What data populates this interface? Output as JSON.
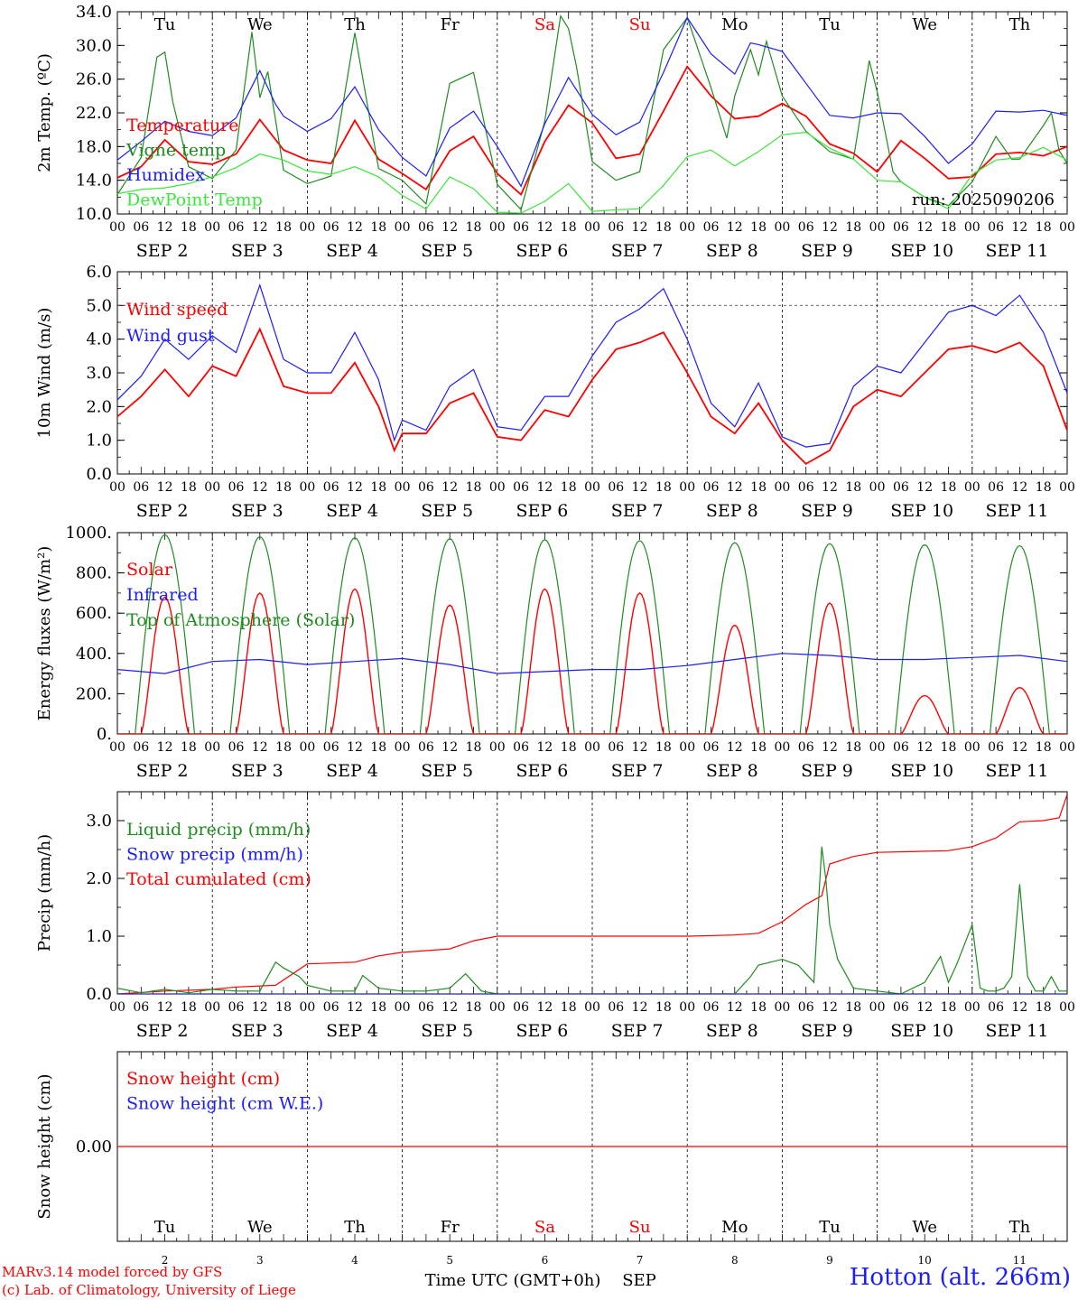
{
  "run_label": "run: 2025090206",
  "weekdays": [
    "Tu",
    "We",
    "Th",
    "Fr",
    "Sa",
    "Su",
    "Mo",
    "Tu",
    "We",
    "Th"
  ],
  "weekend_color": "#ff0000",
  "day_labels": [
    "SEP  2",
    "SEP  3",
    "SEP  4",
    "SEP  5",
    "SEP  6",
    "SEP  7",
    "SEP  8",
    "SEP  9",
    "SEP 10",
    "SEP 11"
  ],
  "bottom_day_numbers": [
    "2",
    "3",
    "4",
    "5",
    "6",
    "7",
    "8",
    "9",
    "10",
    "11"
  ],
  "hour_ticks": [
    "00",
    "06",
    "12",
    "18"
  ],
  "hour_tick_last": "00",
  "bottom_axis_label": "Time UTC (GMT+0h)",
  "bottom_axis_month": "SEP",
  "credit_line_1": "MARv3.14 model forced by GFS",
  "credit_line_2": "(c) Lab. of Climatology, University of Liege",
  "station": "Hotton (alt. 266m)",
  "chart_data": [
    {
      "type": "line",
      "ylabel": "2m Temp. (ºC)",
      "ylim": [
        10,
        34
      ],
      "yticks": [
        "10.0",
        "14.0",
        "18.0",
        "22.0",
        "26.0",
        "30.0",
        "34.0"
      ],
      "ytick_values": [
        10,
        14,
        18,
        22,
        26,
        30,
        34
      ],
      "x_unit": "hours since SEP 2 00 UTC",
      "legend": [
        {
          "text": "Temperature",
          "color": "#ff0000"
        },
        {
          "text": "Vigne temp",
          "color": "#1e8c1e"
        },
        {
          "text": "Humidex",
          "color": "#1c1cff"
        },
        {
          "text": "DewPoint Temp",
          "color": "#3ce63c"
        }
      ],
      "series": [
        {
          "name": "Temperature",
          "color": "#ff0000",
          "x": [
            0,
            6,
            12,
            18,
            24,
            30,
            36,
            42,
            48,
            54,
            60,
            66,
            72,
            78,
            84,
            90,
            96,
            102,
            108,
            114,
            120,
            126,
            132,
            138,
            144,
            150,
            156,
            162,
            168,
            174,
            180,
            186,
            192,
            198,
            204,
            210,
            216,
            222,
            228,
            234,
            240
          ],
          "y": [
            14.3,
            15.6,
            18.8,
            16.2,
            15.9,
            17.1,
            21.2,
            17.6,
            16.4,
            16.0,
            21.1,
            16.5,
            14.8,
            12.9,
            17.5,
            19.2,
            14.8,
            12.3,
            18.6,
            22.9,
            20.8,
            16.6,
            17.1,
            22.2,
            27.5,
            24.0,
            21.3,
            21.6,
            23.1,
            21.6,
            18.3,
            17.2,
            15.0,
            18.7,
            16.6,
            14.2,
            14.4,
            17.1,
            17.3,
            16.9,
            18.0
          ]
        },
        {
          "name": "Vigne temp",
          "color": "#1e8c1e",
          "x": [
            0,
            6,
            10,
            12,
            14,
            18,
            24,
            30,
            34,
            36,
            38,
            42,
            48,
            54,
            60,
            66,
            72,
            78,
            84,
            90,
            96,
            102,
            108,
            112,
            114,
            116,
            120,
            126,
            132,
            138,
            144,
            150,
            154,
            156,
            160,
            162,
            164,
            168,
            174,
            180,
            186,
            190,
            192,
            196,
            198,
            204,
            210,
            216,
            222,
            226,
            228,
            234,
            236,
            238,
            240
          ],
          "y": [
            12.3,
            16.7,
            28.6,
            29.2,
            23.3,
            15.6,
            14.2,
            17.6,
            31.6,
            23.8,
            26.9,
            15.2,
            13.6,
            14.5,
            31.5,
            15.4,
            14.0,
            11.2,
            25.5,
            26.8,
            13.5,
            10.5,
            21.0,
            33.5,
            32.0,
            27.5,
            16.2,
            14.0,
            15.0,
            29.5,
            33.3,
            25.0,
            19.0,
            24.0,
            29.5,
            26.5,
            30.5,
            24.0,
            19.8,
            17.4,
            16.5,
            28.2,
            24.5,
            15.0,
            13.8,
            12.0,
            11.0,
            13.8,
            19.2,
            16.5,
            16.5,
            20.5,
            22.0,
            17.5,
            16.0
          ]
        },
        {
          "name": "Humidex",
          "color": "#1c1cff",
          "x": [
            0,
            6,
            12,
            18,
            24,
            30,
            36,
            40,
            42,
            48,
            54,
            60,
            66,
            72,
            78,
            84,
            90,
            96,
            102,
            108,
            114,
            120,
            126,
            132,
            138,
            144,
            150,
            156,
            160,
            162,
            168,
            174,
            180,
            186,
            192,
            198,
            204,
            210,
            216,
            222,
            228,
            234,
            240
          ],
          "y": [
            16.4,
            18.6,
            21.0,
            19.8,
            19.3,
            21.4,
            27.0,
            23.0,
            21.6,
            19.8,
            21.3,
            25.1,
            20.0,
            16.7,
            14.5,
            20.2,
            22.2,
            18.0,
            13.3,
            20.7,
            26.2,
            21.8,
            19.4,
            20.9,
            26.8,
            33.3,
            29.0,
            26.6,
            30.3,
            30.1,
            29.3,
            25.5,
            21.7,
            21.4,
            22.0,
            21.9,
            19.2,
            16.0,
            18.3,
            22.2,
            22.1,
            22.3,
            21.7
          ]
        },
        {
          "name": "DewPoint Temp",
          "color": "#3ce63c",
          "x": [
            0,
            6,
            12,
            18,
            24,
            30,
            36,
            42,
            48,
            54,
            60,
            66,
            72,
            78,
            84,
            90,
            96,
            102,
            108,
            114,
            120,
            126,
            132,
            138,
            144,
            150,
            156,
            162,
            168,
            174,
            180,
            186,
            192,
            198,
            204,
            210,
            216,
            222,
            228,
            234,
            240
          ],
          "y": [
            12.4,
            12.9,
            13.1,
            13.6,
            14.4,
            15.5,
            17.1,
            16.4,
            15.1,
            14.7,
            15.6,
            14.4,
            12.2,
            10.6,
            14.4,
            13.0,
            10.2,
            10.1,
            11.5,
            13.6,
            10.3,
            10.5,
            10.6,
            13.4,
            16.8,
            17.6,
            15.7,
            17.4,
            19.4,
            19.7,
            17.8,
            16.5,
            14.0,
            13.8,
            12.0,
            10.6,
            14.7,
            16.4,
            16.7,
            17.9,
            16.4
          ]
        }
      ]
    },
    {
      "type": "line",
      "ylabel": "10m Wind (m/s)",
      "ylim": [
        0,
        6
      ],
      "yticks": [
        "0.0",
        "1.0",
        "2.0",
        "3.0",
        "4.0",
        "5.0",
        "6.0"
      ],
      "ytick_values": [
        0,
        1,
        2,
        3,
        4,
        5,
        6
      ],
      "reference_line": 5.0,
      "legend": [
        {
          "text": "Wind speed",
          "color": "#ff0000"
        },
        {
          "text": "Wind gust",
          "color": "#1c1cff"
        }
      ],
      "series": [
        {
          "name": "Wind speed",
          "color": "#ff0000",
          "x": [
            0,
            6,
            12,
            18,
            24,
            30,
            36,
            42,
            48,
            54,
            60,
            66,
            70,
            72,
            78,
            84,
            90,
            96,
            102,
            108,
            114,
            120,
            126,
            132,
            138,
            144,
            150,
            156,
            162,
            168,
            174,
            180,
            186,
            192,
            198,
            204,
            210,
            216,
            222,
            228,
            234,
            240
          ],
          "y": [
            1.7,
            2.3,
            3.1,
            2.3,
            3.2,
            2.9,
            4.3,
            2.6,
            2.4,
            2.4,
            3.3,
            2.0,
            0.7,
            1.2,
            1.2,
            2.1,
            2.4,
            1.1,
            1.0,
            1.9,
            1.7,
            2.8,
            3.7,
            3.9,
            4.2,
            3.0,
            1.7,
            1.2,
            2.1,
            1.0,
            0.3,
            0.7,
            2.0,
            2.5,
            2.3,
            3.0,
            3.7,
            3.8,
            3.6,
            3.9,
            3.2,
            1.3
          ]
        },
        {
          "name": "Wind gust",
          "color": "#1c1cff",
          "x": [
            0,
            6,
            12,
            18,
            24,
            30,
            36,
            42,
            48,
            54,
            60,
            66,
            70,
            72,
            78,
            84,
            90,
            96,
            102,
            108,
            114,
            120,
            126,
            132,
            138,
            144,
            150,
            156,
            162,
            168,
            174,
            180,
            186,
            192,
            198,
            204,
            210,
            216,
            222,
            228,
            234,
            240
          ],
          "y": [
            2.2,
            2.9,
            4.0,
            3.4,
            4.1,
            3.6,
            5.6,
            3.4,
            3.0,
            3.0,
            4.2,
            2.8,
            1.0,
            1.6,
            1.3,
            2.6,
            3.1,
            1.4,
            1.3,
            2.3,
            2.3,
            3.5,
            4.5,
            4.9,
            5.5,
            4.0,
            2.1,
            1.4,
            2.7,
            1.1,
            0.8,
            0.9,
            2.6,
            3.2,
            3.0,
            3.9,
            4.8,
            5.0,
            4.7,
            5.3,
            4.2,
            2.4
          ]
        }
      ]
    },
    {
      "type": "line",
      "ylabel": "Energy fluxes (W/m²)",
      "ylim": [
        0,
        1000
      ],
      "yticks": [
        "0.",
        "200.",
        "400.",
        "600.",
        "800.",
        "1000."
      ],
      "ytick_values": [
        0,
        200,
        400,
        600,
        800,
        1000
      ],
      "legend": [
        {
          "text": "Solar",
          "color": "#ff0000"
        },
        {
          "text": "Infrared",
          "color": "#1c1cff"
        },
        {
          "text": "Top of Atmosphere (Solar)",
          "color": "#1e8c1e"
        }
      ],
      "toa_peaks": [
        990,
        980,
        975,
        970,
        965,
        960,
        950,
        945,
        940,
        935
      ],
      "solar_peaks": [
        680,
        700,
        720,
        640,
        720,
        700,
        540,
        650,
        190,
        230
      ],
      "series": [
        {
          "name": "Infrared",
          "color": "#1c1cff",
          "x": [
            0,
            12,
            24,
            36,
            48,
            60,
            72,
            84,
            96,
            108,
            120,
            132,
            144,
            156,
            168,
            180,
            192,
            204,
            216,
            228,
            240
          ],
          "y": [
            320,
            300,
            360,
            370,
            345,
            360,
            375,
            345,
            300,
            310,
            320,
            320,
            340,
            370,
            400,
            390,
            370,
            370,
            380,
            390,
            360
          ]
        }
      ]
    },
    {
      "type": "line",
      "ylabel": "Precip (mm/h)",
      "ylim": [
        0,
        3.5
      ],
      "yticks": [
        "0.0",
        "1.0",
        "2.0",
        "3.0"
      ],
      "ytick_values": [
        0,
        1,
        2,
        3
      ],
      "legend": [
        {
          "text": "Liquid precip (mm/h)",
          "color": "#1e8c1e"
        },
        {
          "text": "Snow precip (mm/h)",
          "color": "#1c1cff"
        },
        {
          "text": "Total cumulated (cm)",
          "color": "#ff0000"
        }
      ],
      "series": [
        {
          "name": "Total cumulated (cm)",
          "color": "#ff0000",
          "x": [
            0,
            12,
            24,
            30,
            40,
            48,
            60,
            66,
            72,
            84,
            90,
            96,
            108,
            120,
            144,
            156,
            162,
            168,
            174,
            178,
            180,
            186,
            192,
            210,
            216,
            222,
            228,
            234,
            238,
            240
          ],
          "y": [
            0.0,
            0.05,
            0.08,
            0.12,
            0.15,
            0.52,
            0.55,
            0.66,
            0.72,
            0.78,
            0.92,
            1.0,
            1.0,
            1.0,
            1.0,
            1.02,
            1.05,
            1.25,
            1.55,
            1.7,
            2.25,
            2.38,
            2.45,
            2.48,
            2.55,
            2.7,
            2.98,
            3.0,
            3.05,
            3.45
          ]
        },
        {
          "name": "Liquid precip (mm/h)",
          "color": "#1e8c1e",
          "x": [
            0,
            6,
            12,
            18,
            24,
            30,
            36,
            40,
            42,
            46,
            48,
            54,
            60,
            62,
            66,
            72,
            78,
            84,
            88,
            92,
            96,
            108,
            120,
            144,
            156,
            160,
            162,
            168,
            172,
            176,
            178,
            179,
            180,
            182,
            186,
            192,
            198,
            204,
            208,
            210,
            212,
            216,
            218,
            220,
            222,
            224,
            226,
            228,
            230,
            232,
            234,
            236,
            238,
            240
          ],
          "y": [
            0.1,
            0.02,
            0.08,
            0.02,
            0.08,
            0.05,
            0.05,
            0.55,
            0.45,
            0.3,
            0.15,
            0.05,
            0.05,
            0.32,
            0.1,
            0.05,
            0.05,
            0.1,
            0.35,
            0.05,
            0.0,
            0.0,
            0.0,
            0.0,
            0.0,
            0.3,
            0.5,
            0.6,
            0.5,
            0.2,
            2.55,
            2.0,
            1.2,
            0.6,
            0.1,
            0.05,
            0.0,
            0.2,
            0.65,
            0.2,
            0.5,
            1.2,
            0.1,
            0.05,
            0.05,
            0.1,
            0.3,
            1.9,
            0.3,
            0.05,
            0.05,
            0.3,
            0.05,
            0.05
          ]
        },
        {
          "name": "Snow precip (mm/h)",
          "color": "#1c1cff",
          "x": [
            0,
            240
          ],
          "y": [
            0,
            0
          ]
        }
      ]
    },
    {
      "type": "line",
      "ylabel": "Snow height (cm)",
      "ylim": [
        -1,
        1
      ],
      "yticks": [
        "0.00"
      ],
      "ytick_values": [
        0
      ],
      "legend": [
        {
          "text": "Snow height (cm)",
          "color": "#ff0000"
        },
        {
          "text": "Snow height (cm W.E.)",
          "color": "#1c1cff"
        }
      ],
      "series": [
        {
          "name": "Snow height (cm)",
          "color": "#ff0000",
          "x": [
            0,
            240
          ],
          "y": [
            0,
            0
          ]
        }
      ]
    }
  ]
}
